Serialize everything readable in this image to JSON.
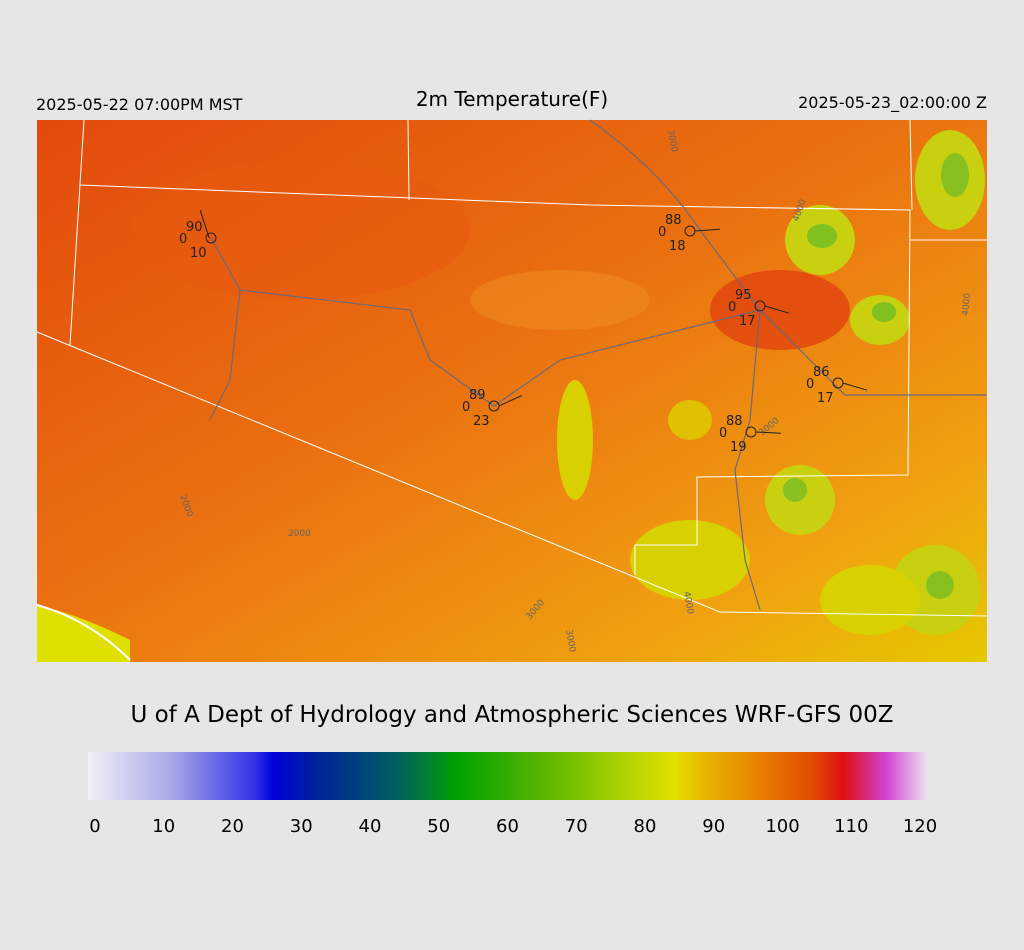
{
  "header": {
    "left": "2025-05-22 07:00PM MST",
    "title": "2m Temperature(F)",
    "right": "2025-05-23_02:00:00 Z"
  },
  "stations": [
    {
      "temp": "90",
      "left": "0",
      "bottom": "10"
    },
    {
      "temp": "88",
      "left": "0",
      "bottom": "18"
    },
    {
      "temp": "95",
      "left": "0",
      "bottom": "17"
    },
    {
      "temp": "86",
      "left": "0",
      "bottom": "17"
    },
    {
      "temp": "89",
      "left": "0",
      "bottom": "23"
    },
    {
      "temp": "88",
      "left": "0",
      "bottom": "19"
    }
  ],
  "contour_labels": [
    "2000",
    "3000",
    "3000",
    "3000",
    "4000",
    "4000",
    "3000",
    "4000",
    "2000"
  ],
  "footer": "U of A Dept of Hydrology and Atmospheric Sciences WRF-GFS 00Z",
  "colorbar": {
    "ticks": [
      0,
      10,
      20,
      30,
      40,
      50,
      60,
      70,
      80,
      90,
      100,
      110,
      120
    ]
  }
}
